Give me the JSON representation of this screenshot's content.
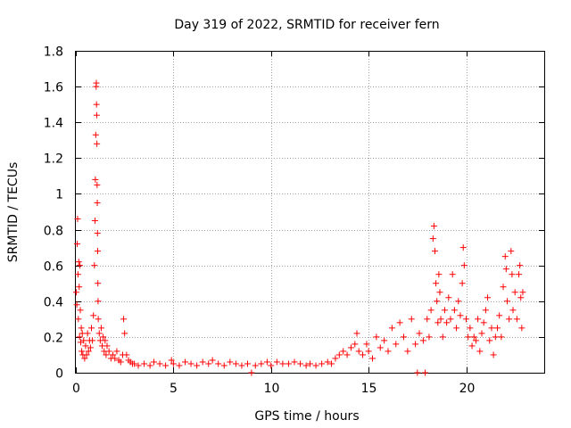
{
  "chart_data": {
    "type": "scatter",
    "title": "Day 319 of 2022, SRMTID for receiver fern",
    "xlabel": "GPS time / hours",
    "ylabel": "SRMTID / TECUs",
    "xlim": [
      0,
      24
    ],
    "ylim": [
      0,
      1.8
    ],
    "x_ticks": [
      "0",
      "5",
      "10",
      "15",
      "20"
    ],
    "y_ticks": [
      "0",
      "0.2",
      "0.4",
      "0.6",
      "0.8",
      "1",
      "1.2",
      "1.4",
      "1.6",
      "1.8"
    ],
    "grid": true,
    "marker": "+",
    "color": "#ff0000",
    "series": [
      {
        "name": "SRMTID",
        "points": [
          [
            0.02,
            0.45
          ],
          [
            0.05,
            0.38
          ],
          [
            0.07,
            0.72
          ],
          [
            0.09,
            0.86
          ],
          [
            0.11,
            0.55
          ],
          [
            0.13,
            0.3
          ],
          [
            0.15,
            0.62
          ],
          [
            0.17,
            0.48
          ],
          [
            0.19,
            0.2
          ],
          [
            0.21,
            0.6
          ],
          [
            0.23,
            0.35
          ],
          [
            0.25,
            0.17
          ],
          [
            0.28,
            0.25
          ],
          [
            0.3,
            0.12
          ],
          [
            0.33,
            0.22
          ],
          [
            0.36,
            0.1
          ],
          [
            0.4,
            0.18
          ],
          [
            0.45,
            0.08
          ],
          [
            0.5,
            0.15
          ],
          [
            0.55,
            0.1
          ],
          [
            0.6,
            0.22
          ],
          [
            0.65,
            0.12
          ],
          [
            0.7,
            0.18
          ],
          [
            0.75,
            0.14
          ],
          [
            0.8,
            0.25
          ],
          [
            0.85,
            0.18
          ],
          [
            0.9,
            0.32
          ],
          [
            0.95,
            0.6
          ],
          [
            0.98,
            0.85
          ],
          [
            1.0,
            1.08
          ],
          [
            1.02,
            1.33
          ],
          [
            1.04,
            1.6
          ],
          [
            1.05,
            1.62
          ],
          [
            1.06,
            1.5
          ],
          [
            1.07,
            1.44
          ],
          [
            1.08,
            1.28
          ],
          [
            1.09,
            1.05
          ],
          [
            1.1,
            0.95
          ],
          [
            1.11,
            0.78
          ],
          [
            1.12,
            0.68
          ],
          [
            1.13,
            0.5
          ],
          [
            1.14,
            0.4
          ],
          [
            1.15,
            0.3
          ],
          [
            1.2,
            0.22
          ],
          [
            1.25,
            0.18
          ],
          [
            1.3,
            0.25
          ],
          [
            1.35,
            0.15
          ],
          [
            1.4,
            0.2
          ],
          [
            1.45,
            0.12
          ],
          [
            1.5,
            0.18
          ],
          [
            1.55,
            0.1
          ],
          [
            1.6,
            0.15
          ],
          [
            1.7,
            0.12
          ],
          [
            1.8,
            0.08
          ],
          [
            1.9,
            0.1
          ],
          [
            2.0,
            0.08
          ],
          [
            2.1,
            0.12
          ],
          [
            2.2,
            0.07
          ],
          [
            2.3,
            0.06
          ],
          [
            2.4,
            0.1
          ],
          [
            2.45,
            0.3
          ],
          [
            2.5,
            0.22
          ],
          [
            2.6,
            0.1
          ],
          [
            2.7,
            0.07
          ],
          [
            2.8,
            0.06
          ],
          [
            2.9,
            0.05
          ],
          [
            3.0,
            0.05
          ],
          [
            3.2,
            0.04
          ],
          [
            3.5,
            0.05
          ],
          [
            3.8,
            0.04
          ],
          [
            4.0,
            0.06
          ],
          [
            4.3,
            0.05
          ],
          [
            4.6,
            0.04
          ],
          [
            4.9,
            0.07
          ],
          [
            5.0,
            0.05
          ],
          [
            5.3,
            0.04
          ],
          [
            5.6,
            0.06
          ],
          [
            5.9,
            0.05
          ],
          [
            6.2,
            0.04
          ],
          [
            6.5,
            0.06
          ],
          [
            6.8,
            0.05
          ],
          [
            7.0,
            0.07
          ],
          [
            7.3,
            0.05
          ],
          [
            7.6,
            0.04
          ],
          [
            7.9,
            0.06
          ],
          [
            8.2,
            0.05
          ],
          [
            8.5,
            0.04
          ],
          [
            8.8,
            0.05
          ],
          [
            9.0,
            0.0
          ],
          [
            9.2,
            0.04
          ],
          [
            9.5,
            0.05
          ],
          [
            9.8,
            0.06
          ],
          [
            10.0,
            0.04
          ],
          [
            10.3,
            0.06
          ],
          [
            10.6,
            0.05
          ],
          [
            10.9,
            0.05
          ],
          [
            11.2,
            0.06
          ],
          [
            11.5,
            0.05
          ],
          [
            11.8,
            0.04
          ],
          [
            12.0,
            0.05
          ],
          [
            12.3,
            0.04
          ],
          [
            12.6,
            0.05
          ],
          [
            12.9,
            0.06
          ],
          [
            13.1,
            0.05
          ],
          [
            13.3,
            0.08
          ],
          [
            13.5,
            0.1
          ],
          [
            13.7,
            0.12
          ],
          [
            13.9,
            0.1
          ],
          [
            14.1,
            0.14
          ],
          [
            14.3,
            0.16
          ],
          [
            14.4,
            0.22
          ],
          [
            14.5,
            0.12
          ],
          [
            14.7,
            0.1
          ],
          [
            14.9,
            0.16
          ],
          [
            15.0,
            0.12
          ],
          [
            15.2,
            0.08
          ],
          [
            15.4,
            0.2
          ],
          [
            15.6,
            0.14
          ],
          [
            15.8,
            0.18
          ],
          [
            16.0,
            0.12
          ],
          [
            16.2,
            0.25
          ],
          [
            16.4,
            0.16
          ],
          [
            16.6,
            0.28
          ],
          [
            16.8,
            0.2
          ],
          [
            17.0,
            0.12
          ],
          [
            17.2,
            0.3
          ],
          [
            17.4,
            0.16
          ],
          [
            17.5,
            0.0
          ],
          [
            17.6,
            0.22
          ],
          [
            17.8,
            0.18
          ],
          [
            17.9,
            0.0
          ],
          [
            18.0,
            0.3
          ],
          [
            18.1,
            0.2
          ],
          [
            18.2,
            0.35
          ],
          [
            18.3,
            0.75
          ],
          [
            18.35,
            0.82
          ],
          [
            18.4,
            0.68
          ],
          [
            18.45,
            0.5
          ],
          [
            18.5,
            0.4
          ],
          [
            18.55,
            0.28
          ],
          [
            18.6,
            0.55
          ],
          [
            18.65,
            0.45
          ],
          [
            18.7,
            0.3
          ],
          [
            18.8,
            0.2
          ],
          [
            18.9,
            0.35
          ],
          [
            19.0,
            0.28
          ],
          [
            19.1,
            0.42
          ],
          [
            19.2,
            0.3
          ],
          [
            19.3,
            0.55
          ],
          [
            19.4,
            0.35
          ],
          [
            19.5,
            0.25
          ],
          [
            19.6,
            0.4
          ],
          [
            19.7,
            0.32
          ],
          [
            19.8,
            0.5
          ],
          [
            19.85,
            0.7
          ],
          [
            19.9,
            0.6
          ],
          [
            20.0,
            0.3
          ],
          [
            20.1,
            0.2
          ],
          [
            20.2,
            0.25
          ],
          [
            20.3,
            0.15
          ],
          [
            20.4,
            0.2
          ],
          [
            20.5,
            0.18
          ],
          [
            20.6,
            0.3
          ],
          [
            20.7,
            0.12
          ],
          [
            20.8,
            0.22
          ],
          [
            20.9,
            0.28
          ],
          [
            21.0,
            0.35
          ],
          [
            21.1,
            0.42
          ],
          [
            21.2,
            0.18
          ],
          [
            21.3,
            0.25
          ],
          [
            21.4,
            0.1
          ],
          [
            21.5,
            0.2
          ],
          [
            21.6,
            0.25
          ],
          [
            21.7,
            0.32
          ],
          [
            21.8,
            0.2
          ],
          [
            21.9,
            0.48
          ],
          [
            22.0,
            0.65
          ],
          [
            22.05,
            0.58
          ],
          [
            22.1,
            0.4
          ],
          [
            22.2,
            0.3
          ],
          [
            22.3,
            0.68
          ],
          [
            22.35,
            0.55
          ],
          [
            22.4,
            0.35
          ],
          [
            22.5,
            0.45
          ],
          [
            22.6,
            0.3
          ],
          [
            22.7,
            0.55
          ],
          [
            22.75,
            0.6
          ],
          [
            22.8,
            0.42
          ],
          [
            22.85,
            0.25
          ],
          [
            22.9,
            0.45
          ]
        ]
      }
    ]
  }
}
